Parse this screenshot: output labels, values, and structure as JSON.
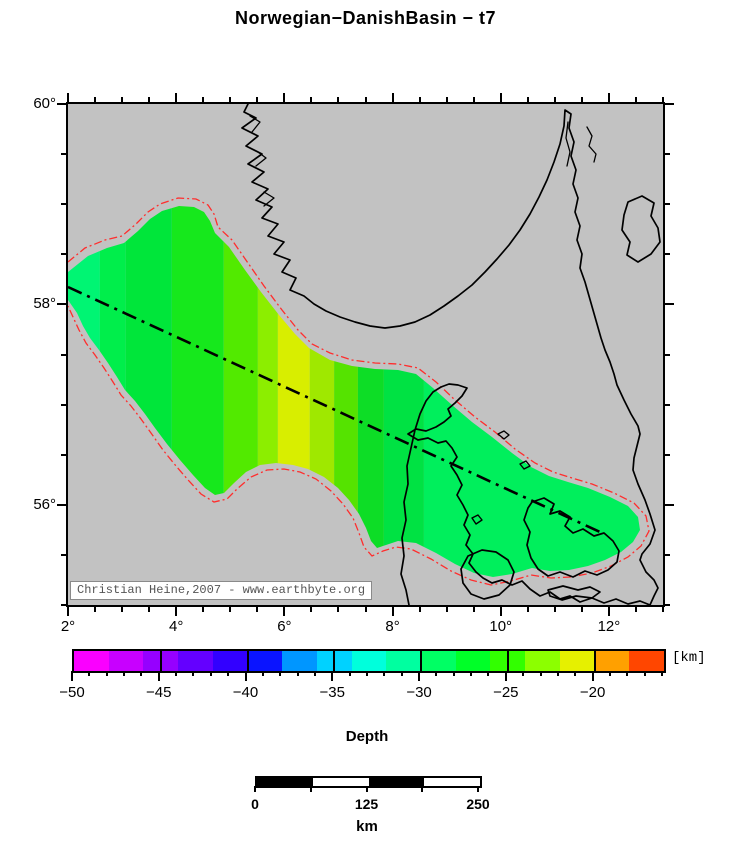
{
  "title": "Norwegian−DanishBasin − t7",
  "map": {
    "lon_min": 2,
    "lon_max": 13,
    "lat_min": 55,
    "lat_max": 60,
    "minor_step": 0.5,
    "x_ticks": [
      {
        "v": 2,
        "label": "2°"
      },
      {
        "v": 4,
        "label": "4°"
      },
      {
        "v": 6,
        "label": "6°"
      },
      {
        "v": 8,
        "label": "8°"
      },
      {
        "v": 10,
        "label": "10°"
      },
      {
        "v": 12,
        "label": "12°"
      }
    ],
    "y_ticks": [
      {
        "v": 60,
        "label": "60°"
      },
      {
        "v": 58,
        "label": "58°"
      },
      {
        "v": 56,
        "label": "56°"
      }
    ],
    "attribution": "Christian Heine,2007 - www.earthbyte.org",
    "background_color": "#c2c2c2",
    "coastline_color": "#000000",
    "basin_outline_color": "#ff2d2d",
    "basin_axis_style": "dash-dot"
  },
  "basin": {
    "bands": [
      {
        "from_lon": 2.0,
        "to_lon": 2.59,
        "color": "#00f573"
      },
      {
        "from_lon": 2.59,
        "to_lon": 3.07,
        "color": "#00ee4b"
      },
      {
        "from_lon": 3.07,
        "to_lon": 3.92,
        "color": "#00e63a"
      },
      {
        "from_lon": 3.92,
        "to_lon": 4.88,
        "color": "#16e81c"
      },
      {
        "from_lon": 4.88,
        "to_lon": 5.51,
        "color": "#52ea00"
      },
      {
        "from_lon": 5.51,
        "to_lon": 5.88,
        "color": "#8cee00"
      },
      {
        "from_lon": 5.88,
        "to_lon": 6.47,
        "color": "#d8ee00"
      },
      {
        "from_lon": 6.47,
        "to_lon": 6.92,
        "color": "#9fe800"
      },
      {
        "from_lon": 6.92,
        "to_lon": 7.36,
        "color": "#55e300"
      },
      {
        "from_lon": 7.36,
        "to_lon": 7.84,
        "color": "#0ddd26"
      },
      {
        "from_lon": 7.84,
        "to_lon": 8.58,
        "color": "#00e243"
      },
      {
        "from_lon": 8.58,
        "to_lon": 13.0,
        "color": "#00ef5c"
      }
    ]
  },
  "colorbar": {
    "unit": "[km]",
    "label": "Depth",
    "min": -50,
    "max": -16,
    "minor_step": 1,
    "major_ticks": [
      {
        "v": -50,
        "label": "−50"
      },
      {
        "v": -45,
        "label": "−45"
      },
      {
        "v": -40,
        "label": "−40"
      },
      {
        "v": -35,
        "label": "−35"
      },
      {
        "v": -30,
        "label": "−30"
      },
      {
        "v": -25,
        "label": "−25"
      },
      {
        "v": -20,
        "label": "−20"
      }
    ],
    "cells": [
      {
        "from": -50,
        "to": -48,
        "color": "#fa00ff"
      },
      {
        "from": -48,
        "to": -46,
        "color": "#c800ff"
      },
      {
        "from": -46,
        "to": -44,
        "color": "#9600ff"
      },
      {
        "from": -44,
        "to": -42,
        "color": "#6400ff"
      },
      {
        "from": -42,
        "to": -40,
        "color": "#3200ff"
      },
      {
        "from": -40,
        "to": -38,
        "color": "#0a14ff"
      },
      {
        "from": -38,
        "to": -36,
        "color": "#0096ff"
      },
      {
        "from": -36,
        "to": -34,
        "color": "#00d2ff"
      },
      {
        "from": -34,
        "to": -32,
        "color": "#00ffdc"
      },
      {
        "from": -32,
        "to": -30,
        "color": "#00ffa0"
      },
      {
        "from": -30,
        "to": -28,
        "color": "#00ff64"
      },
      {
        "from": -28,
        "to": -26,
        "color": "#00ff28"
      },
      {
        "from": -26,
        "to": -24,
        "color": "#32ff00"
      },
      {
        "from": -24,
        "to": -22,
        "color": "#8cff00"
      },
      {
        "from": -22,
        "to": -20,
        "color": "#e6f000"
      },
      {
        "from": -20,
        "to": -18,
        "color": "#ffa000"
      },
      {
        "from": -18,
        "to": -16,
        "color": "#ff4600"
      }
    ]
  },
  "scalebar": {
    "from": 0,
    "to": 250,
    "segments": 4,
    "unit": "km",
    "tick_labels": [
      {
        "frac": 0.0,
        "label": "0"
      },
      {
        "frac": 0.5,
        "label": "125"
      },
      {
        "frac": 1.0,
        "label": "250"
      }
    ]
  }
}
